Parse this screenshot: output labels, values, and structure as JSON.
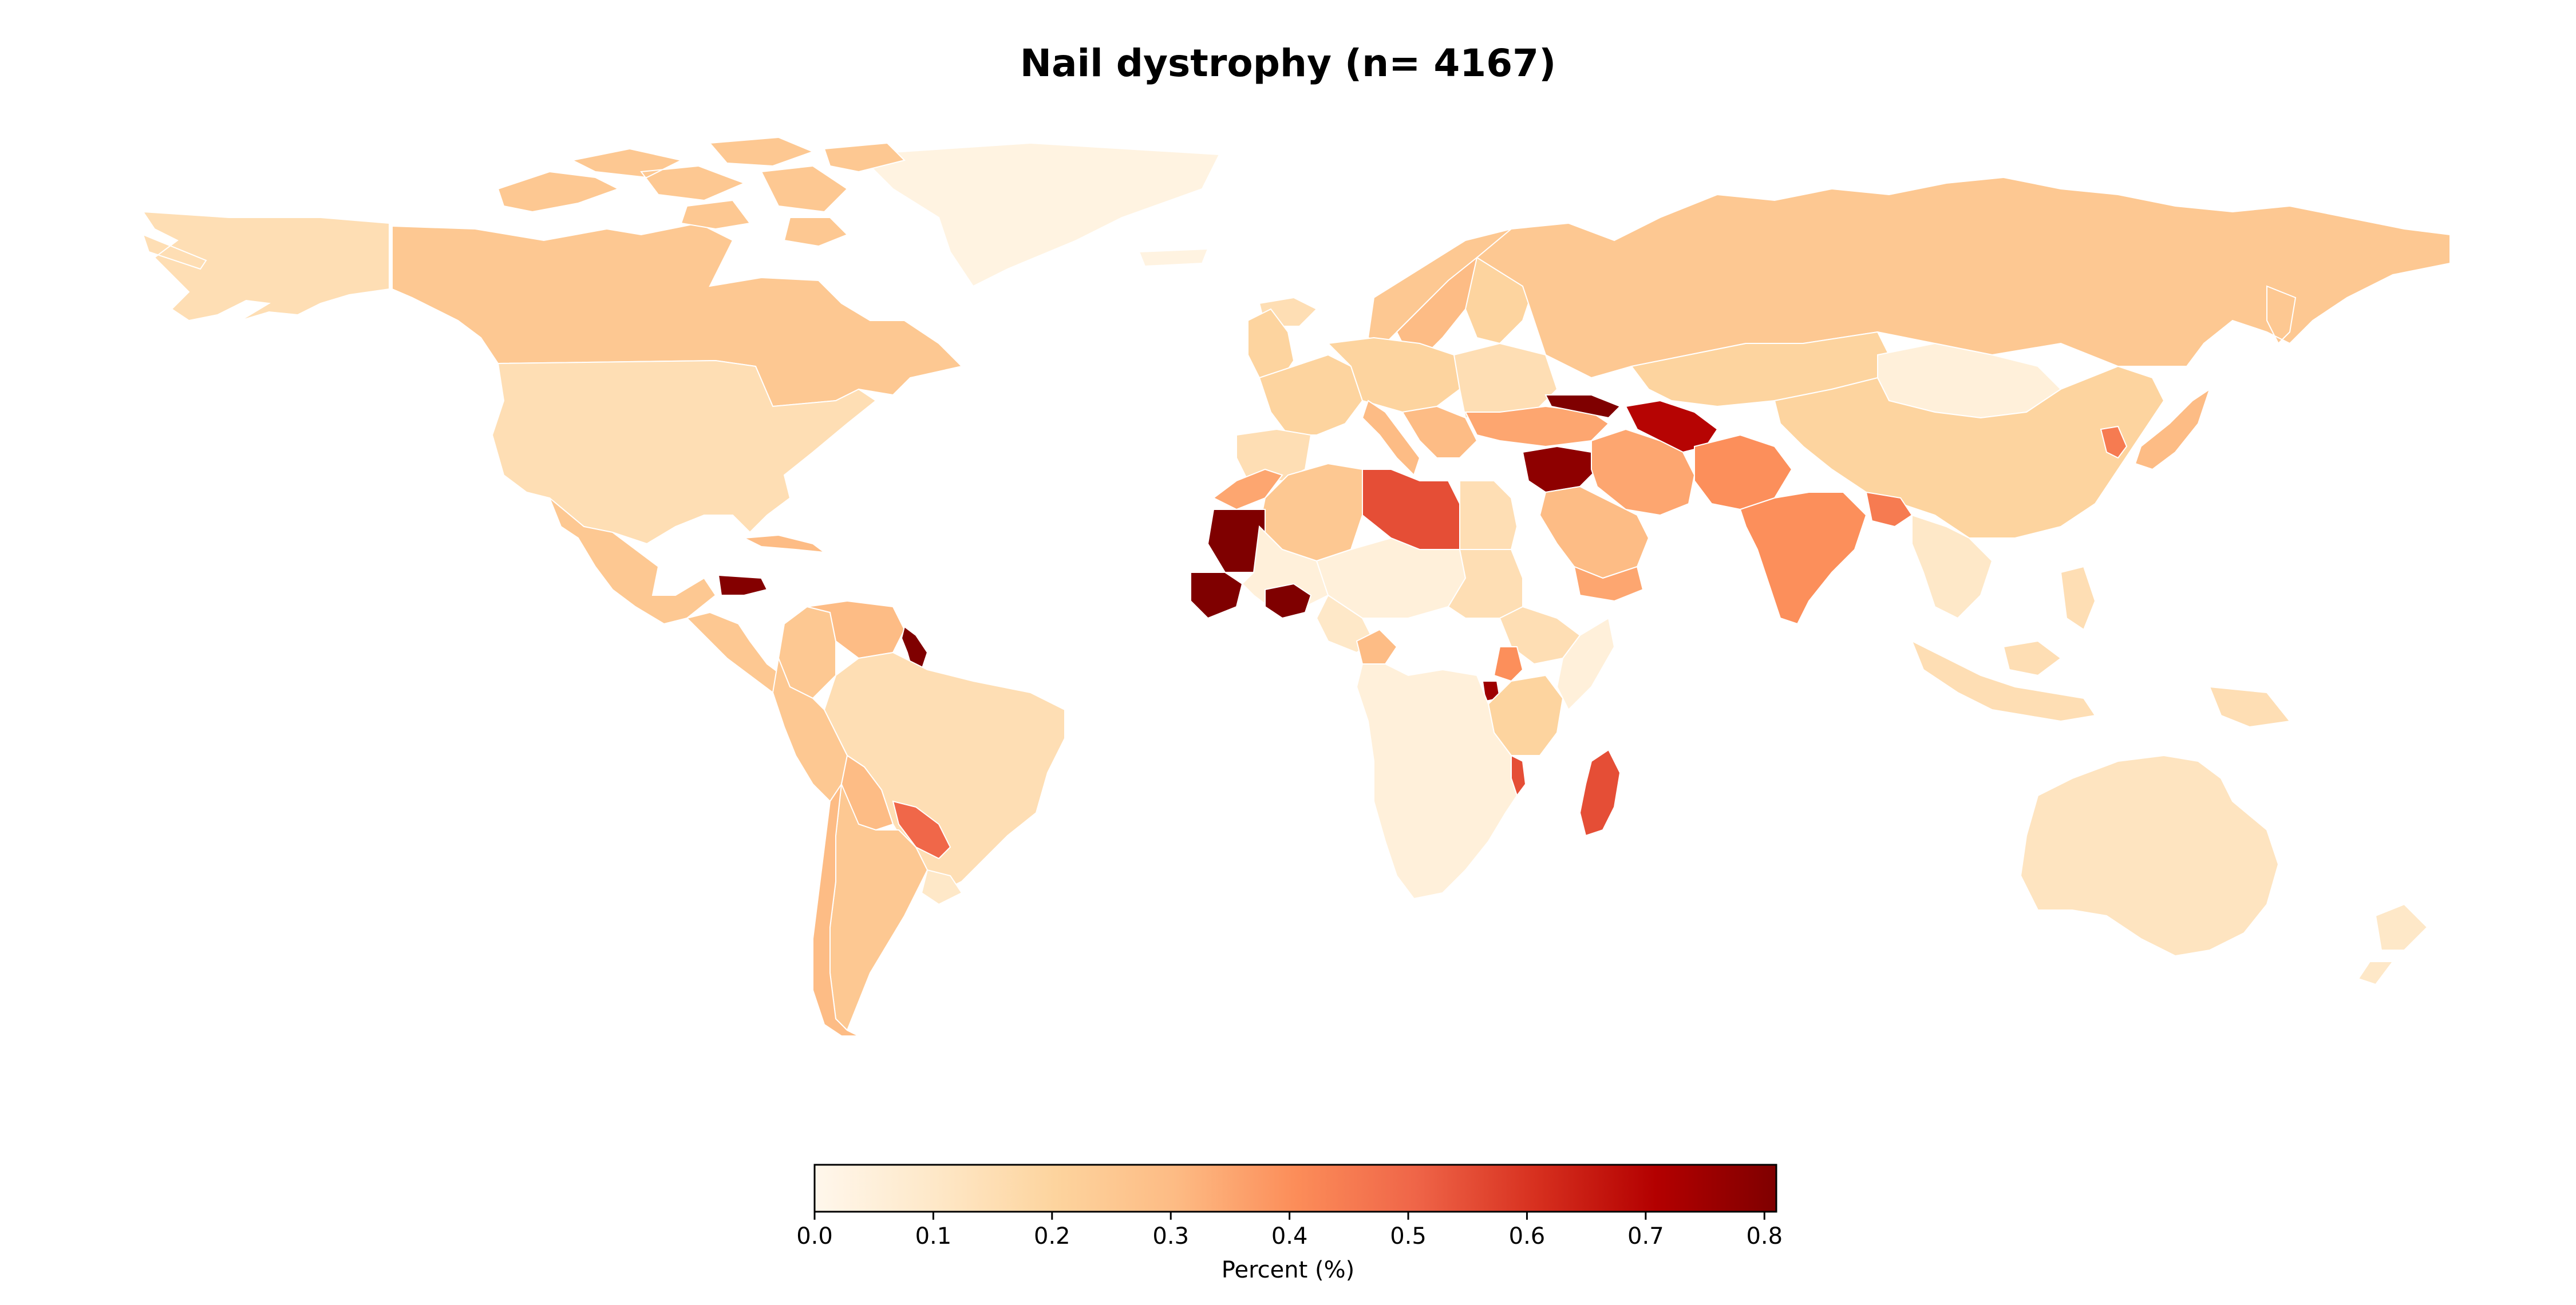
{
  "title": "Nail dystrophy (n= 4167)",
  "colorbar": {
    "label": "Percent (%)",
    "min": 0.0,
    "max": 0.81,
    "ticks": [
      "0.0",
      "0.1",
      "0.2",
      "0.3",
      "0.4",
      "0.5",
      "0.6",
      "0.7",
      "0.8"
    ],
    "colormap": [
      "#fff5eb",
      "#fee6ce",
      "#fdd0a2",
      "#fdae6b",
      "#fd8d3c",
      "#f16913",
      "#d94801",
      "#a50f15",
      "#7f0000"
    ],
    "gradient_stops": [
      "#fff7ec",
      "#fee8c8",
      "#fdd49e",
      "#fdbb84",
      "#fc8d59",
      "#ef6548",
      "#d7301f",
      "#b30000",
      "#7f0000"
    ]
  },
  "regions": [
    {
      "name": "Greenland",
      "value": 0.03
    },
    {
      "name": "Alaska (USA)",
      "value": 0.15
    },
    {
      "name": "Canada",
      "value": 0.25
    },
    {
      "name": "Canadian Arctic Islands",
      "value": 0.25
    },
    {
      "name": "United States",
      "value": 0.15
    },
    {
      "name": "Mexico",
      "value": 0.25
    },
    {
      "name": "Central America",
      "value": 0.25
    },
    {
      "name": "Honduras",
      "value": 0.8
    },
    {
      "name": "Cuba",
      "value": 0.3
    },
    {
      "name": "Colombia",
      "value": 0.25
    },
    {
      "name": "Venezuela",
      "value": 0.3
    },
    {
      "name": "Guyana",
      "value": 0.81
    },
    {
      "name": "Brazil",
      "value": 0.15
    },
    {
      "name": "Peru",
      "value": 0.25
    },
    {
      "name": "Bolivia",
      "value": 0.3
    },
    {
      "name": "Paraguay",
      "value": 0.5
    },
    {
      "name": "Argentina",
      "value": 0.25
    },
    {
      "name": "Chile",
      "value": 0.3
    },
    {
      "name": "Uruguay",
      "value": 0.1
    },
    {
      "name": "Iceland",
      "value": 0.15
    },
    {
      "name": "Norway",
      "value": 0.25
    },
    {
      "name": "Sweden",
      "value": 0.3
    },
    {
      "name": "Finland",
      "value": 0.2
    },
    {
      "name": "United Kingdom",
      "value": 0.2
    },
    {
      "name": "Western Europe",
      "value": 0.2
    },
    {
      "name": "Central Europe",
      "value": 0.2
    },
    {
      "name": "Spain",
      "value": 0.15
    },
    {
      "name": "Italy",
      "value": 0.3
    },
    {
      "name": "Balkans",
      "value": 0.3
    },
    {
      "name": "Eastern Europe",
      "value": 0.15
    },
    {
      "name": "Russia",
      "value": 0.25
    },
    {
      "name": "Kazakhstan",
      "value": 0.2
    },
    {
      "name": "Mongolia",
      "value": 0.05
    },
    {
      "name": "China",
      "value": 0.2
    },
    {
      "name": "Korea",
      "value": 0.45
    },
    {
      "name": "Japan",
      "value": 0.3
    },
    {
      "name": "Turkey",
      "value": 0.35
    },
    {
      "name": "Georgia",
      "value": 0.81
    },
    {
      "name": "Syria",
      "value": 0.78
    },
    {
      "name": "Turkmenistan",
      "value": 0.7
    },
    {
      "name": "Iran",
      "value": 0.35
    },
    {
      "name": "Saudi Arabia",
      "value": 0.3
    },
    {
      "name": "Yemen",
      "value": 0.35
    },
    {
      "name": "Afghanistan / Pakistan",
      "value": 0.4
    },
    {
      "name": "India",
      "value": 0.4
    },
    {
      "name": "Bangladesh",
      "value": 0.45
    },
    {
      "name": "Southeast Asia",
      "value": 0.1
    },
    {
      "name": "Indonesia",
      "value": 0.15
    },
    {
      "name": "Philippines",
      "value": 0.15
    },
    {
      "name": "Australia",
      "value": 0.12
    },
    {
      "name": "New Zealand",
      "value": 0.1
    },
    {
      "name": "Morocco",
      "value": 0.35
    },
    {
      "name": "Algeria",
      "value": 0.25
    },
    {
      "name": "Libya",
      "value": 0.55
    },
    {
      "name": "Egypt",
      "value": 0.15
    },
    {
      "name": "Mauritania",
      "value": 0.81
    },
    {
      "name": "Senegal / Guinea",
      "value": 0.81
    },
    {
      "name": "Mali",
      "value": 0.05
    },
    {
      "name": "Burkina Faso",
      "value": 0.81
    },
    {
      "name": "Niger / Chad",
      "value": 0.05
    },
    {
      "name": "Nigeria",
      "value": 0.1
    },
    {
      "name": "Cameroon",
      "value": 0.3
    },
    {
      "name": "Sudan",
      "value": 0.15
    },
    {
      "name": "Ethiopia",
      "value": 0.15
    },
    {
      "name": "Somalia",
      "value": 0.05
    },
    {
      "name": "Uganda",
      "value": 0.4
    },
    {
      "name": "Rwanda / Burundi",
      "value": 0.75
    },
    {
      "name": "Kenya / Tanzania",
      "value": 0.2
    },
    {
      "name": "Malawi",
      "value": 0.55
    },
    {
      "name": "Central & Southern Africa",
      "value": 0.05
    },
    {
      "name": "Madagascar",
      "value": 0.55
    }
  ],
  "colors": {
    "water": "#ffffff",
    "text": "#000000"
  }
}
